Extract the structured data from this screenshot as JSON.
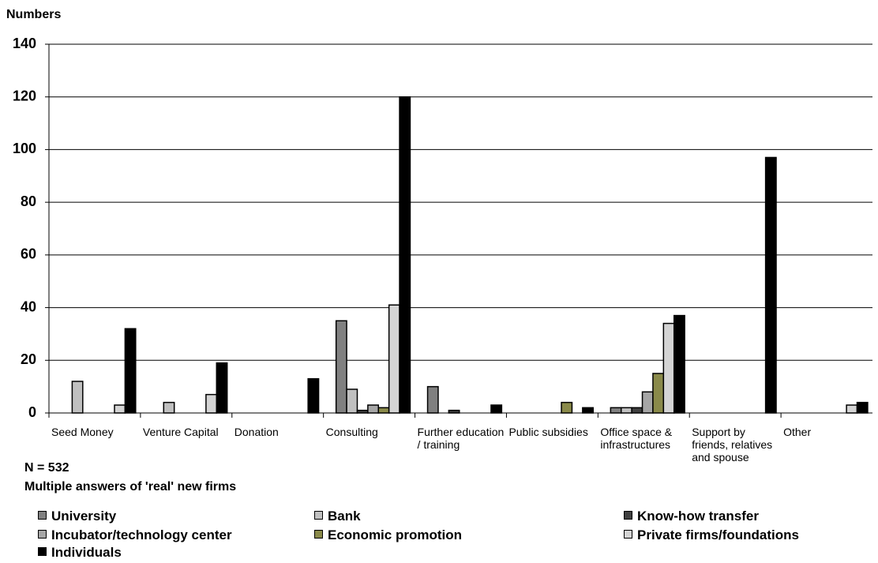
{
  "chart_data": {
    "type": "bar",
    "ylabel": "Numbers",
    "notes": [
      "N = 532",
      "Multiple answers of 'real' new firms"
    ],
    "categories": [
      "Seed Money",
      "Venture Capital",
      "Donation",
      "Consulting",
      "Further education / training",
      "Public subsidies",
      "Office space & infrastructures",
      "Support by friends, relatives and spouse",
      "Other"
    ],
    "series": [
      {
        "name": "University",
        "color": "#808080",
        "values": [
          0,
          0,
          0,
          35,
          10,
          0,
          2,
          0,
          0
        ]
      },
      {
        "name": "Bank",
        "color": "#c0c0c0",
        "values": [
          12,
          4,
          0,
          9,
          0,
          0,
          2,
          0,
          0
        ]
      },
      {
        "name": "Know-how transfer",
        "color": "#404040",
        "values": [
          0,
          0,
          0,
          1,
          1,
          0,
          2,
          0,
          0
        ]
      },
      {
        "name": "Incubator/technology center",
        "color": "#a6a6a6",
        "values": [
          0,
          0,
          0,
          3,
          0,
          0,
          8,
          0,
          0
        ]
      },
      {
        "name": "Economic promotion",
        "color": "#8a8a4a",
        "values": [
          0,
          0,
          0,
          2,
          0,
          4,
          15,
          0,
          0
        ]
      },
      {
        "name": "Private firms/foundations",
        "color": "#d4d4d4",
        "values": [
          3,
          7,
          0,
          41,
          0,
          0,
          34,
          0,
          3
        ]
      },
      {
        "name": "Individuals",
        "color": "#000000",
        "values": [
          32,
          19,
          13,
          120,
          3,
          2,
          37,
          97,
          4
        ]
      }
    ],
    "ylim": [
      0,
      140
    ],
    "yticks": [
      0,
      20,
      40,
      60,
      80,
      100,
      120,
      140
    ],
    "grid": true
  }
}
